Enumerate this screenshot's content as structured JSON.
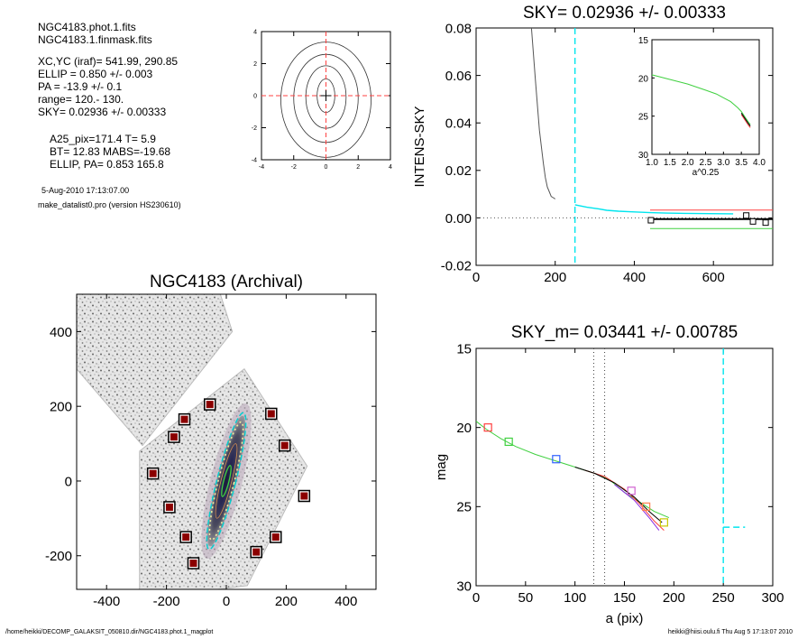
{
  "header": {
    "lines_a": [
      "NGC4183.phot.1.fits",
      "NGC4183.1.finmask.fits"
    ],
    "lines_b": [
      "XC,YC (iraf)=   541.99, 290.85",
      "ELLIP = 0.850 +/- 0.003",
      "PA    = -13.9 +/-   0.1",
      "range=  120.-  130.",
      "SKY= 0.02936 +/- 0.00333"
    ],
    "lines_c": [
      "A25_pix=171.4   T= 5.9",
      "BT=  12.83   MABS=-19.68",
      "ELLIP, PA= 0.853   165.8"
    ],
    "date": "5-Aug-2010 17:13:07.00",
    "program": "make_datalist0.pro (version HS230610)"
  },
  "footer": {
    "left": "/home/heikki/DECOMP_GALAKSIT_050810.dir/NGC4183.phot.1_magplot",
    "right": "heikki@hiisi.oulu.fi  Thu Aug  5 17:13:07 2010"
  },
  "colors": {
    "cyan": "#00e5ee",
    "red": "#ff4040",
    "green": "#40d040",
    "grey": "#555555",
    "darkred": "#8b0000"
  },
  "chart_data": [
    {
      "id": "contour",
      "type": "contour",
      "title": "",
      "xlim": [
        -4,
        4
      ],
      "ylim": [
        -4,
        4
      ],
      "xticks": [
        "-4",
        "-2",
        "0",
        "2",
        "4"
      ],
      "yticks": [
        "4",
        "2",
        "0",
        "-2",
        "-4"
      ],
      "crosshair": [
        0,
        0
      ]
    },
    {
      "id": "sky",
      "type": "line",
      "title": "SKY= 0.02936 +/- 0.00333",
      "xlabel": "",
      "ylabel": "INTENS-SKY",
      "xlim": [
        0,
        750
      ],
      "ylim": [
        -0.02,
        0.08
      ],
      "xticks": [
        "0",
        "200",
        "400",
        "600"
      ],
      "yticks": [
        "0.08",
        "0.06",
        "0.04",
        "0.02",
        "0.00",
        "-0.02"
      ],
      "series": [
        {
          "color": "#555555",
          "x": [
            140,
            150,
            160,
            170,
            175,
            180,
            185,
            190,
            195,
            200
          ],
          "y": [
            0.08,
            0.058,
            0.037,
            0.023,
            0.017,
            0.013,
            0.011,
            0.009,
            0.0085,
            0.008
          ]
        },
        {
          "color": "#00e5ee",
          "x": [
            250,
            280,
            310,
            330,
            360,
            400,
            440,
            480,
            530,
            590,
            650
          ],
          "y": [
            0.0055,
            0.0045,
            0.0038,
            0.0032,
            0.0028,
            0.0025,
            0.0022,
            0.002,
            0.0019,
            0.0018,
            0.0017
          ]
        }
      ],
      "hlines": [
        {
          "color": "#ff4040",
          "x": [
            440,
            750
          ],
          "y": 0.0033
        },
        {
          "color": "#000000",
          "x": [
            440,
            750
          ],
          "y": -0.0005
        },
        {
          "color": "#40d040",
          "x": [
            440,
            750
          ],
          "y": -0.0045
        }
      ],
      "vline": 250,
      "squares": [
        {
          "x": 442,
          "y": -0.001
        },
        {
          "x": 683,
          "y": 0.001
        },
        {
          "x": 700,
          "y": -0.0015
        },
        {
          "x": 732,
          "y": -0.002
        }
      ],
      "inset": {
        "xlabel": "a^0.25",
        "xlim": [
          1.0,
          4.0
        ],
        "ylim": [
          15,
          30
        ],
        "xticks": [
          "1.0",
          "1.5",
          "2.0",
          "2.5",
          "3.0",
          "3.5",
          "4.0"
        ],
        "yticks": [
          "15",
          "20",
          "25",
          "30"
        ],
        "curve_x": [
          1.0,
          1.5,
          2.0,
          2.5,
          2.8,
          3.0,
          3.2,
          3.4,
          3.5,
          3.6,
          3.7,
          3.75
        ],
        "curve_y": [
          19.6,
          20.2,
          20.8,
          21.6,
          22.1,
          22.6,
          23.1,
          23.9,
          24.4,
          25.1,
          25.8,
          26.1
        ]
      }
    },
    {
      "id": "image",
      "type": "image",
      "title": "NGC4183 (Archival)",
      "xlim": [
        -500,
        500
      ],
      "ylim": [
        -290,
        500
      ],
      "xticks": [
        "-400",
        "-200",
        "0",
        "200",
        "400"
      ],
      "yticks": [
        "400",
        "200",
        "0",
        "-200"
      ],
      "ellipse": {
        "cx": 0,
        "cy": 0,
        "a": 171.4,
        "ellip": 0.853,
        "pa": 165.8
      },
      "markers": [
        {
          "x": -55,
          "y": 205
        },
        {
          "x": -140,
          "y": 165
        },
        {
          "x": -175,
          "y": 118
        },
        {
          "x": -245,
          "y": 20
        },
        {
          "x": -190,
          "y": -70
        },
        {
          "x": -135,
          "y": -150
        },
        {
          "x": -110,
          "y": -220
        },
        {
          "x": 150,
          "y": 180
        },
        {
          "x": 195,
          "y": 95
        },
        {
          "x": 260,
          "y": -40
        },
        {
          "x": 165,
          "y": -150
        },
        {
          "x": 100,
          "y": -190
        }
      ]
    },
    {
      "id": "mag",
      "type": "line",
      "title": "SKY_m=  0.03441 +/- 0.00785",
      "xlabel": "a (pix)",
      "ylabel": "mag",
      "xlim": [
        0,
        300
      ],
      "ylim": [
        15,
        30
      ],
      "xticks": [
        "0",
        "50",
        "100",
        "150",
        "200",
        "250",
        "300"
      ],
      "yticks": [
        "15",
        "20",
        "25",
        "30"
      ],
      "series": [
        {
          "color": "#40d040",
          "x": [
            0,
            10,
            25,
            40,
            60,
            80,
            100,
            110,
            120,
            135,
            150,
            165,
            180,
            195
          ],
          "y": [
            19.6,
            20.1,
            20.7,
            21.2,
            21.7,
            22.1,
            22.5,
            22.7,
            22.9,
            23.3,
            24.1,
            24.7,
            25.3,
            25.7
          ]
        },
        {
          "color": "#ff4040",
          "x": [
            110,
            130,
            150,
            165,
            180,
            190
          ],
          "y": [
            22.7,
            23.1,
            23.9,
            24.8,
            25.9,
            26.5
          ]
        },
        {
          "color": "#000000",
          "x": [
            100,
            120,
            140,
            160,
            175,
            188
          ],
          "y": [
            22.5,
            22.9,
            23.5,
            24.4,
            25.3,
            26.0
          ]
        },
        {
          "color": "#8a2be2",
          "x": [
            140,
            160,
            175,
            185
          ],
          "y": [
            23.6,
            24.6,
            25.7,
            26.5
          ]
        }
      ],
      "vlines_dotted": [
        119,
        130
      ],
      "vline": 250,
      "sky_level_x": [
        250,
        272
      ],
      "sky_level_y": 26.3,
      "squares": [
        {
          "x": 12,
          "y": 20.0,
          "color": "#ff4040"
        },
        {
          "x": 33,
          "y": 20.9,
          "color": "#40d040"
        },
        {
          "x": 81,
          "y": 22.0,
          "color": "#3060ff"
        },
        {
          "x": 157,
          "y": 24.0,
          "color": "#d060d0"
        },
        {
          "x": 172,
          "y": 25.0,
          "color": "#ff7f50"
        },
        {
          "x": 190,
          "y": 26.0,
          "color": "#c8c800"
        }
      ]
    }
  ]
}
